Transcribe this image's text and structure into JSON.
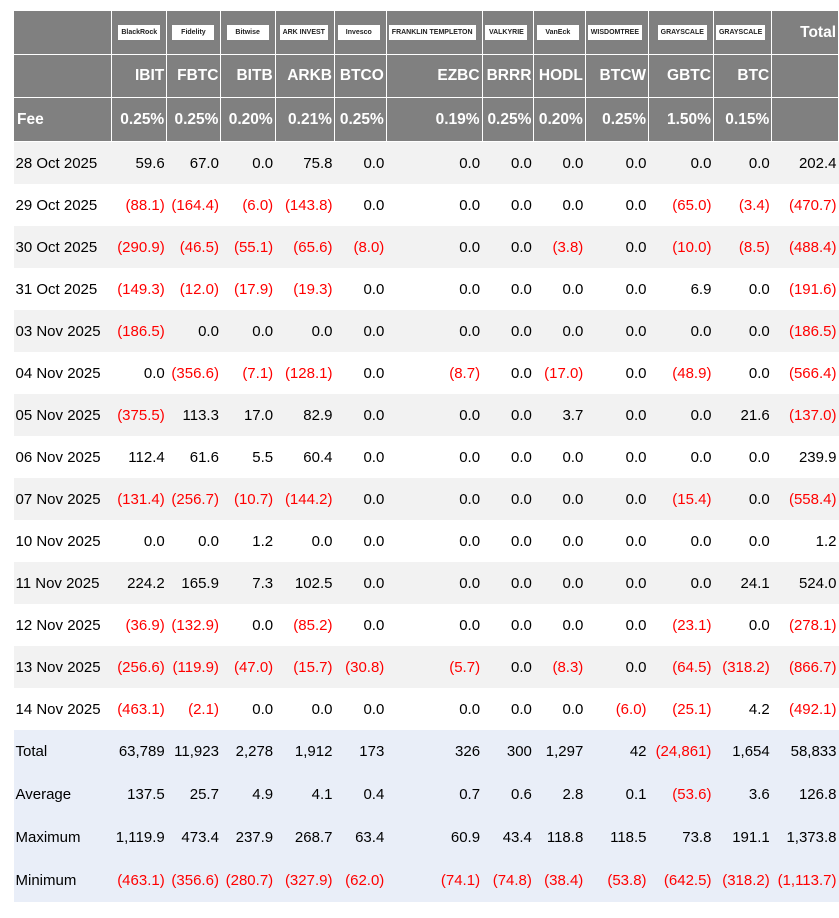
{
  "issuers": [
    "BlackRock",
    "Fidelity",
    "Bitwise",
    "ARK INVEST",
    "Invesco",
    "FRANKLIN TEMPLETON",
    "VALKYRIE",
    "VanEck",
    "WISDOMTREE",
    "GRAYSCALE",
    "GRAYSCALE"
  ],
  "total_header": "Total",
  "tickers": [
    "IBIT",
    "FBTC",
    "BITB",
    "ARKB",
    "BTCO",
    "EZBC",
    "BRRR",
    "HODL",
    "BTCW",
    "GBTC",
    "BTC"
  ],
  "fee_label": "Fee",
  "fees": [
    "0.25%",
    "0.25%",
    "0.20%",
    "0.21%",
    "0.25%",
    "0.19%",
    "0.25%",
    "0.20%",
    "0.25%",
    "1.50%",
    "0.15%"
  ],
  "rows": [
    {
      "date": "28 Oct 2025",
      "values": [
        "59.6",
        "67.0",
        "0.0",
        "75.8",
        "0.0",
        "0.0",
        "0.0",
        "0.0",
        "0.0",
        "0.0",
        "0.0",
        "202.4"
      ]
    },
    {
      "date": "29 Oct 2025",
      "values": [
        "(88.1)",
        "(164.4)",
        "(6.0)",
        "(143.8)",
        "0.0",
        "0.0",
        "0.0",
        "0.0",
        "0.0",
        "(65.0)",
        "(3.4)",
        "(470.7)"
      ]
    },
    {
      "date": "30 Oct 2025",
      "values": [
        "(290.9)",
        "(46.5)",
        "(55.1)",
        "(65.6)",
        "(8.0)",
        "0.0",
        "0.0",
        "(3.8)",
        "0.0",
        "(10.0)",
        "(8.5)",
        "(488.4)"
      ]
    },
    {
      "date": "31 Oct 2025",
      "values": [
        "(149.3)",
        "(12.0)",
        "(17.9)",
        "(19.3)",
        "0.0",
        "0.0",
        "0.0",
        "0.0",
        "0.0",
        "6.9",
        "0.0",
        "(191.6)"
      ]
    },
    {
      "date": "03 Nov 2025",
      "values": [
        "(186.5)",
        "0.0",
        "0.0",
        "0.0",
        "0.0",
        "0.0",
        "0.0",
        "0.0",
        "0.0",
        "0.0",
        "0.0",
        "(186.5)"
      ]
    },
    {
      "date": "04 Nov 2025",
      "values": [
        "0.0",
        "(356.6)",
        "(7.1)",
        "(128.1)",
        "0.0",
        "(8.7)",
        "0.0",
        "(17.0)",
        "0.0",
        "(48.9)",
        "0.0",
        "(566.4)"
      ]
    },
    {
      "date": "05 Nov 2025",
      "values": [
        "(375.5)",
        "113.3",
        "17.0",
        "82.9",
        "0.0",
        "0.0",
        "0.0",
        "3.7",
        "0.0",
        "0.0",
        "21.6",
        "(137.0)"
      ]
    },
    {
      "date": "06 Nov 2025",
      "values": [
        "112.4",
        "61.6",
        "5.5",
        "60.4",
        "0.0",
        "0.0",
        "0.0",
        "0.0",
        "0.0",
        "0.0",
        "0.0",
        "239.9"
      ]
    },
    {
      "date": "07 Nov 2025",
      "values": [
        "(131.4)",
        "(256.7)",
        "(10.7)",
        "(144.2)",
        "0.0",
        "0.0",
        "0.0",
        "0.0",
        "0.0",
        "(15.4)",
        "0.0",
        "(558.4)"
      ]
    },
    {
      "date": "10 Nov 2025",
      "values": [
        "0.0",
        "0.0",
        "1.2",
        "0.0",
        "0.0",
        "0.0",
        "0.0",
        "0.0",
        "0.0",
        "0.0",
        "0.0",
        "1.2"
      ]
    },
    {
      "date": "11 Nov 2025",
      "values": [
        "224.2",
        "165.9",
        "7.3",
        "102.5",
        "0.0",
        "0.0",
        "0.0",
        "0.0",
        "0.0",
        "0.0",
        "24.1",
        "524.0"
      ]
    },
    {
      "date": "12 Nov 2025",
      "values": [
        "(36.9)",
        "(132.9)",
        "0.0",
        "(85.2)",
        "0.0",
        "0.0",
        "0.0",
        "0.0",
        "0.0",
        "(23.1)",
        "0.0",
        "(278.1)"
      ]
    },
    {
      "date": "13 Nov 2025",
      "values": [
        "(256.6)",
        "(119.9)",
        "(47.0)",
        "(15.7)",
        "(30.8)",
        "(5.7)",
        "0.0",
        "(8.3)",
        "0.0",
        "(64.5)",
        "(318.2)",
        "(866.7)"
      ]
    },
    {
      "date": "14 Nov 2025",
      "values": [
        "(463.1)",
        "(2.1)",
        "0.0",
        "0.0",
        "0.0",
        "0.0",
        "0.0",
        "0.0",
        "(6.0)",
        "(25.1)",
        "4.2",
        "(492.1)"
      ]
    }
  ],
  "summary": [
    {
      "label": "Total",
      "values": [
        "63,789",
        "11,923",
        "2,278",
        "1,912",
        "173",
        "326",
        "300",
        "1,297",
        "42",
        "(24,861)",
        "1,654",
        "58,833"
      ]
    },
    {
      "label": "Average",
      "values": [
        "137.5",
        "25.7",
        "4.9",
        "4.1",
        "0.4",
        "0.7",
        "0.6",
        "2.8",
        "0.1",
        "(53.6)",
        "3.6",
        "126.8"
      ]
    },
    {
      "label": "Maximum",
      "values": [
        "1,119.9",
        "473.4",
        "237.9",
        "268.7",
        "63.4",
        "60.9",
        "43.4",
        "118.8",
        "118.5",
        "73.8",
        "191.1",
        "1,373.8"
      ]
    },
    {
      "label": "Minimum",
      "values": [
        "(463.1)",
        "(356.6)",
        "(280.7)",
        "(327.9)",
        "(62.0)",
        "(74.1)",
        "(74.8)",
        "(38.4)",
        "(53.8)",
        "(642.5)",
        "(318.2)",
        "(1,113.7)"
      ]
    }
  ],
  "colors": {
    "header_bg": "#808080",
    "negative": "#ff0000",
    "summary_bg": "#e9eef8",
    "stripe": "#f2f2f2"
  }
}
